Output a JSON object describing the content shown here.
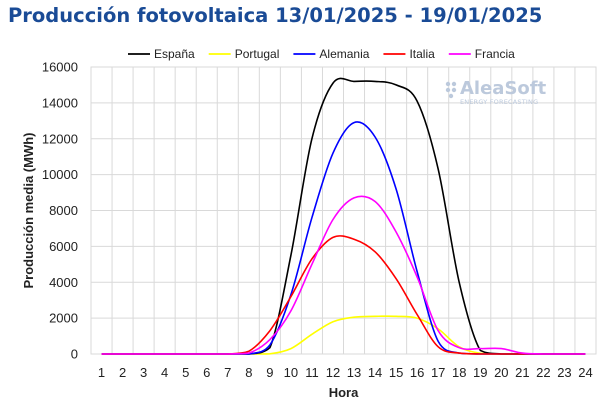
{
  "chart_data": {
    "type": "line",
    "title": "Producción fotovoltaica 13/01/2025 - 19/01/2025",
    "xlabel": "Hora",
    "ylabel": "Producción media (MWh)",
    "ylim": [
      0,
      16000
    ],
    "yticks": [
      0,
      2000,
      4000,
      6000,
      8000,
      10000,
      12000,
      14000,
      16000
    ],
    "ytick_labels": [
      "0",
      "2000",
      "4000",
      "6000",
      "8000",
      "10000",
      "12000",
      "14000",
      "16000"
    ],
    "x": [
      1,
      2,
      3,
      4,
      5,
      6,
      7,
      8,
      9,
      10,
      11,
      12,
      13,
      14,
      15,
      16,
      17,
      18,
      19,
      20,
      21,
      22,
      23,
      24
    ],
    "xtick_labels": [
      "1",
      "2",
      "3",
      "4",
      "5",
      "6",
      "7",
      "8",
      "9",
      "10",
      "11",
      "12",
      "13",
      "14",
      "15",
      "16",
      "17",
      "18",
      "19",
      "20",
      "21",
      "22",
      "23",
      "24"
    ],
    "grid": true,
    "legend_position": "top",
    "series": [
      {
        "name": "España",
        "color": "#000000",
        "values": [
          0,
          0,
          0,
          0,
          0,
          0,
          0,
          0,
          350,
          5500,
          12000,
          15100,
          15200,
          15200,
          15000,
          14100,
          10300,
          4000,
          200,
          0,
          0,
          0,
          0,
          0
        ]
      },
      {
        "name": "Portugal",
        "color": "#ffff00",
        "values": [
          0,
          0,
          0,
          0,
          0,
          0,
          0,
          0,
          10,
          300,
          1100,
          1800,
          2050,
          2100,
          2100,
          2000,
          1400,
          400,
          40,
          0,
          0,
          0,
          0,
          0
        ]
      },
      {
        "name": "Alemania",
        "color": "#0000ff",
        "values": [
          0,
          0,
          0,
          0,
          0,
          0,
          0,
          0,
          500,
          3300,
          7600,
          11200,
          12900,
          12100,
          9200,
          4600,
          700,
          50,
          0,
          0,
          0,
          0,
          0,
          0
        ]
      },
      {
        "name": "Italia",
        "color": "#ff0000",
        "values": [
          0,
          0,
          0,
          0,
          0,
          0,
          0,
          150,
          1300,
          3200,
          5300,
          6500,
          6400,
          5700,
          4200,
          2200,
          400,
          50,
          0,
          0,
          0,
          0,
          0,
          0
        ]
      },
      {
        "name": "Francia",
        "color": "#ff00ff",
        "values": [
          0,
          0,
          0,
          0,
          0,
          0,
          0,
          50,
          800,
          2400,
          5000,
          7500,
          8700,
          8500,
          6800,
          4300,
          1300,
          350,
          300,
          300,
          50,
          0,
          0,
          0
        ]
      }
    ],
    "watermark": {
      "main": "AleaSoft",
      "sub": "ENERGY FORECASTING"
    }
  }
}
